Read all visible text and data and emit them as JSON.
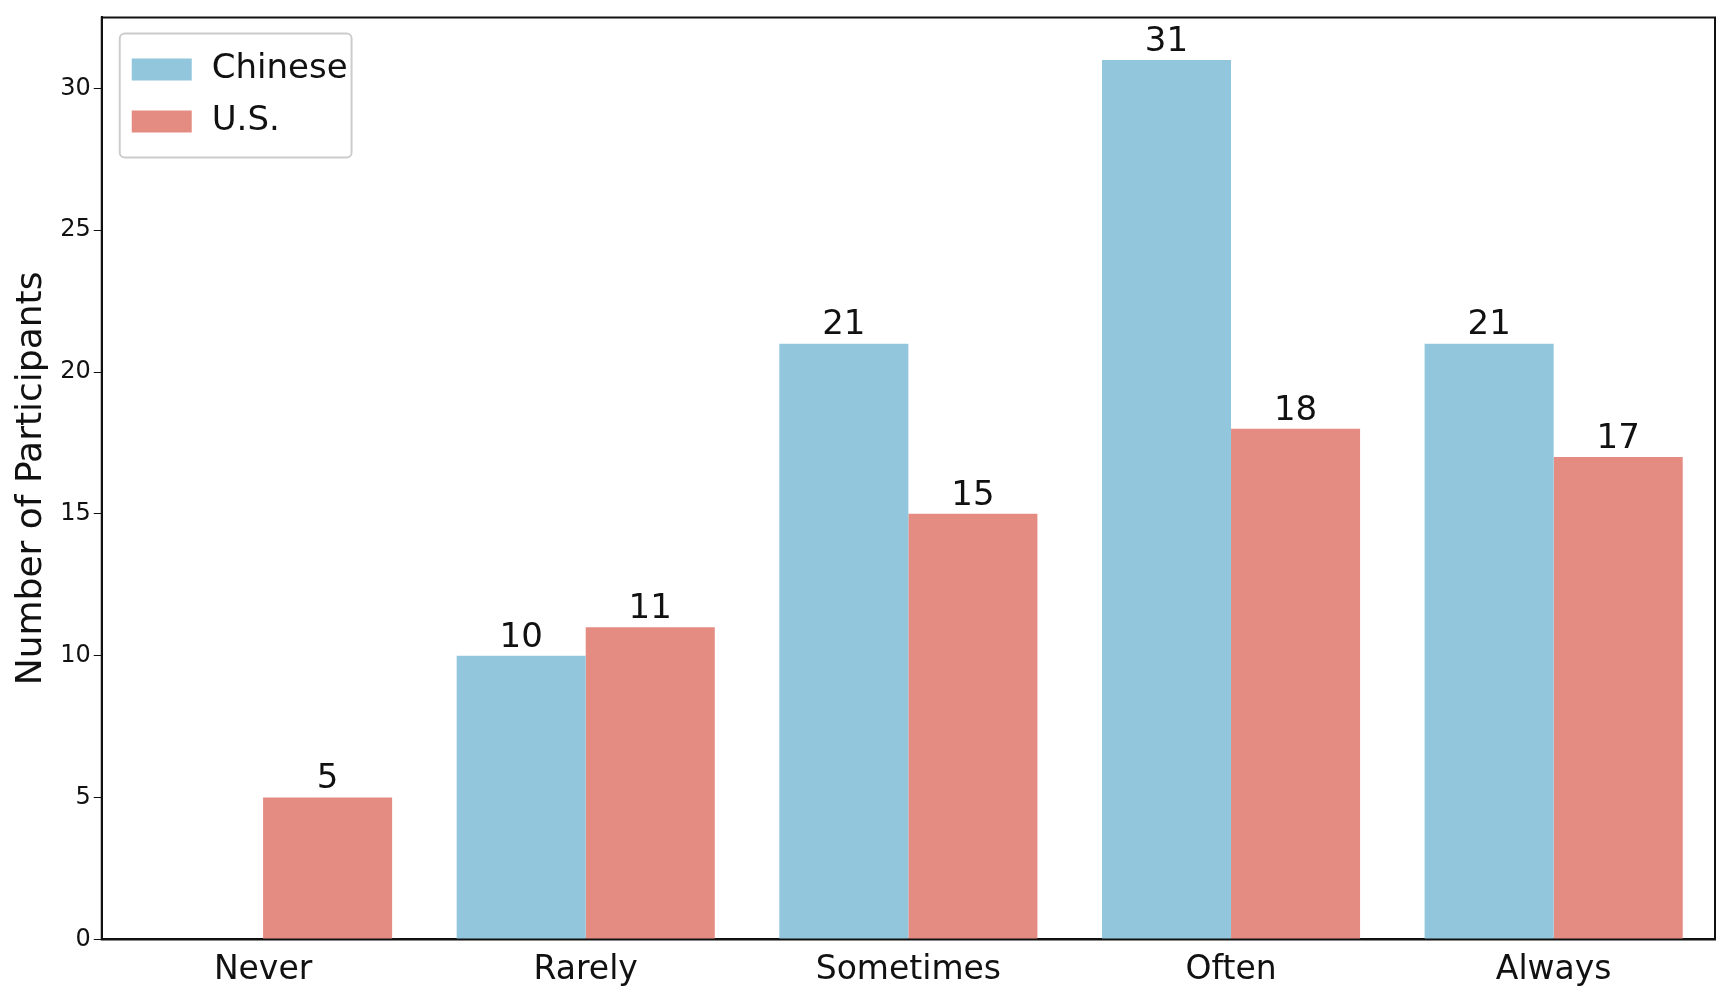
{
  "chart_data": {
    "type": "bar",
    "ylabel": "Number of Participants",
    "categories": [
      "Never",
      "Rarely",
      "Sometimes",
      "Often",
      "Always"
    ],
    "series": [
      {
        "name": "Chinese",
        "color": "#92c6dc",
        "values": [
          0,
          10,
          21,
          31,
          21
        ],
        "value_labels": [
          null,
          "10",
          "21",
          "31",
          "21"
        ]
      },
      {
        "name": "U.S.",
        "color": "#e58c82",
        "values": [
          5,
          11,
          15,
          18,
          17
        ],
        "value_labels": [
          "5",
          "11",
          "15",
          "18",
          "17"
        ]
      }
    ],
    "ylim": [
      0,
      32.5
    ],
    "yticks": [
      0,
      5,
      10,
      15,
      20,
      25,
      30
    ],
    "grid": false,
    "legend": "top left"
  }
}
